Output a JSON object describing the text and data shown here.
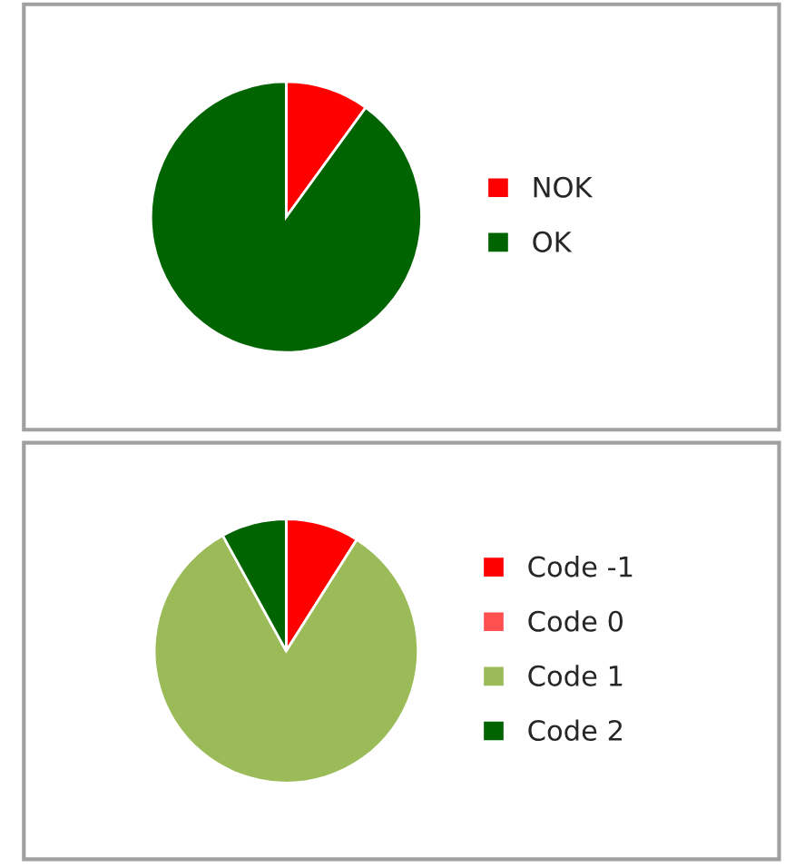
{
  "chart_data": [
    {
      "type": "pie",
      "categories": [
        "NOK",
        "OK"
      ],
      "values": [
        10,
        90
      ],
      "colors": [
        "#ff0000",
        "#006400"
      ],
      "legend": "right"
    },
    {
      "type": "pie",
      "categories": [
        "Code -1",
        "Code 0",
        "Code 1",
        "Code 2"
      ],
      "values": [
        9,
        0,
        83,
        8
      ],
      "colors": [
        "#ff0000",
        "#ff5050",
        "#9bbb59",
        "#006400"
      ],
      "legend": "right"
    }
  ]
}
